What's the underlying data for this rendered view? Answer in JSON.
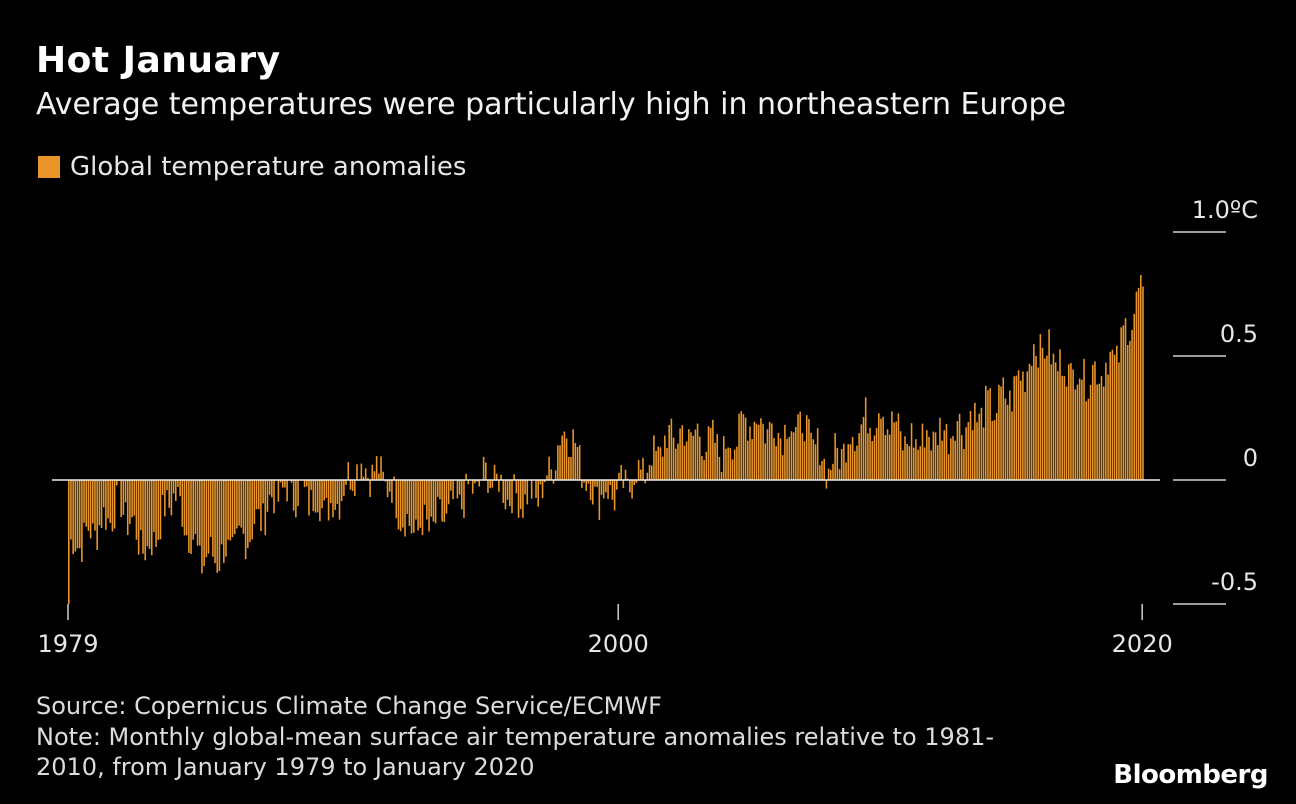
{
  "header": {
    "title": "Hot January",
    "subtitle": "Average temperatures were particularly high in northeastern Europe"
  },
  "footer": {
    "source": "Source: Copernicus Climate Change Service/ECMWF",
    "note": "Note: Monthly global-mean surface air temperature anomalies relative to 1981-2010, from January 1979 to January 2020",
    "brand": "Bloomberg"
  },
  "chart_data": {
    "type": "bar",
    "title": "Hot January",
    "subtitle": "Average temperatures were particularly high in northeastern Europe",
    "series_name": "Global temperature anomalies",
    "bar_color": "#e8952a",
    "start": "January 1979",
    "end": "January 2020",
    "ylim": [
      -0.5,
      1.0
    ],
    "y_ticks": [
      {
        "value": 1.0,
        "label": "1.0ºC"
      },
      {
        "value": 0.5,
        "label": "0.5"
      },
      {
        "value": 0,
        "label": "0"
      },
      {
        "value": -0.5,
        "label": "-0.5"
      }
    ],
    "x_ticks": [
      {
        "year": 1979,
        "label": "1979"
      },
      {
        "year": 2000,
        "label": "2000"
      },
      {
        "year": 2020,
        "label": "2020"
      }
    ],
    "yearly_anomaly_trend": [
      {
        "year": 1979,
        "value": -0.28
      },
      {
        "year": 1980,
        "value": -0.2
      },
      {
        "year": 1981,
        "value": -0.1
      },
      {
        "year": 1982,
        "value": -0.3
      },
      {
        "year": 1983,
        "value": -0.05
      },
      {
        "year": 1984,
        "value": -0.32
      },
      {
        "year": 1985,
        "value": -0.3
      },
      {
        "year": 1986,
        "value": -0.2
      },
      {
        "year": 1987,
        "value": -0.05
      },
      {
        "year": 1988,
        "value": -0.06
      },
      {
        "year": 1989,
        "value": -0.12
      },
      {
        "year": 1990,
        "value": 0.06
      },
      {
        "year": 1991,
        "value": 0.02
      },
      {
        "year": 1992,
        "value": -0.2
      },
      {
        "year": 1993,
        "value": -0.18
      },
      {
        "year": 1994,
        "value": -0.08
      },
      {
        "year": 1995,
        "value": 0.02
      },
      {
        "year": 1996,
        "value": -0.08
      },
      {
        "year": 1997,
        "value": -0.06
      },
      {
        "year": 1998,
        "value": 0.22
      },
      {
        "year": 1999,
        "value": -0.06
      },
      {
        "year": 2000,
        "value": -0.05
      },
      {
        "year": 2001,
        "value": 0.05
      },
      {
        "year": 2002,
        "value": 0.18
      },
      {
        "year": 2003,
        "value": 0.18
      },
      {
        "year": 2004,
        "value": 0.12
      },
      {
        "year": 2005,
        "value": 0.25
      },
      {
        "year": 2006,
        "value": 0.2
      },
      {
        "year": 2007,
        "value": 0.22
      },
      {
        "year": 2008,
        "value": 0.05
      },
      {
        "year": 2009,
        "value": 0.2
      },
      {
        "year": 2010,
        "value": 0.28
      },
      {
        "year": 2011,
        "value": 0.15
      },
      {
        "year": 2012,
        "value": 0.18
      },
      {
        "year": 2013,
        "value": 0.22
      },
      {
        "year": 2014,
        "value": 0.28
      },
      {
        "year": 2015,
        "value": 0.35
      },
      {
        "year": 2016,
        "value": 0.55
      },
      {
        "year": 2017,
        "value": 0.45
      },
      {
        "year": 2018,
        "value": 0.42
      },
      {
        "year": 2019,
        "value": 0.5
      },
      {
        "year": 2020,
        "value": 0.78
      }
    ]
  }
}
